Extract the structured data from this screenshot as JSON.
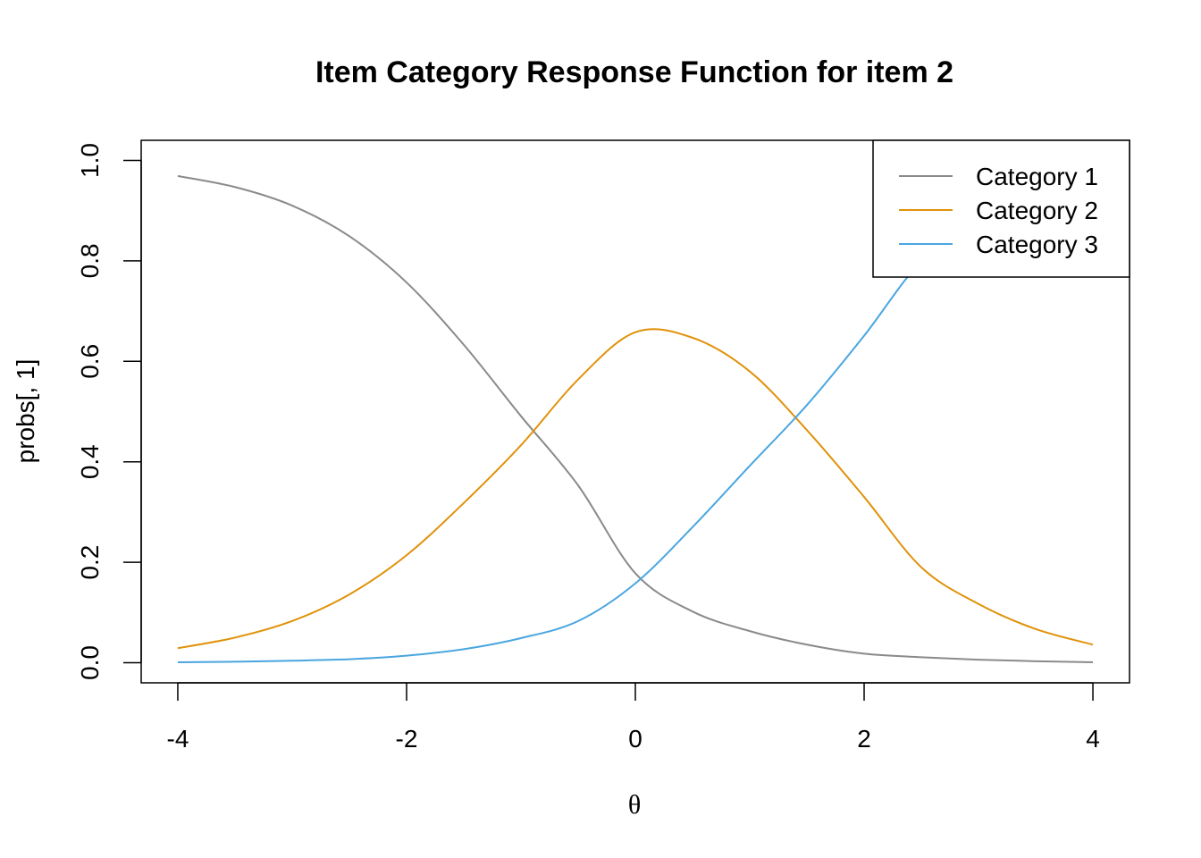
{
  "chart_data": {
    "type": "line",
    "title": "Item Category Response Function for item 2",
    "xlabel": "θ",
    "ylabel": "probs[, 1]",
    "xlim": [
      -4.32,
      4.32
    ],
    "ylim": [
      -0.04,
      1.04
    ],
    "x_ticks": [
      -4,
      -2,
      0,
      2,
      4
    ],
    "x_tick_labels": [
      "-4",
      "-2",
      "0",
      "2",
      "4"
    ],
    "y_ticks": [
      0.0,
      0.2,
      0.4,
      0.6,
      0.8,
      1.0
    ],
    "y_tick_labels": [
      "0.0",
      "0.2",
      "0.4",
      "0.6",
      "0.8",
      "1.0"
    ],
    "grid": false,
    "legend_position": "top-right",
    "x": [
      -4.0,
      -3.5,
      -3.0,
      -2.5,
      -2.0,
      -1.5,
      -1.0,
      -0.5,
      0.0,
      0.5,
      1.0,
      1.5,
      2.0,
      2.5,
      3.0,
      3.5,
      4.0
    ],
    "series": [
      {
        "name": "Category 1",
        "color": "#8a8a8a",
        "values": [
          0.969,
          0.947,
          0.91,
          0.849,
          0.757,
          0.633,
          0.491,
          0.353,
          0.178,
          0.102,
          0.063,
          0.036,
          0.018,
          0.011,
          0.006,
          0.003,
          0.001
        ]
      },
      {
        "name": "Category 2",
        "color": "#e0920a",
        "values": [
          0.029,
          0.05,
          0.083,
          0.136,
          0.214,
          0.318,
          0.433,
          0.564,
          0.658,
          0.647,
          0.58,
          0.463,
          0.33,
          0.19,
          0.117,
          0.067,
          0.036
        ]
      },
      {
        "name": "Category 3",
        "color": "#4aa6e0",
        "values": [
          0.001,
          0.002,
          0.004,
          0.007,
          0.014,
          0.027,
          0.049,
          0.083,
          0.158,
          0.27,
          0.392,
          0.513,
          0.651,
          0.799,
          0.877,
          0.93,
          0.963
        ]
      }
    ]
  }
}
